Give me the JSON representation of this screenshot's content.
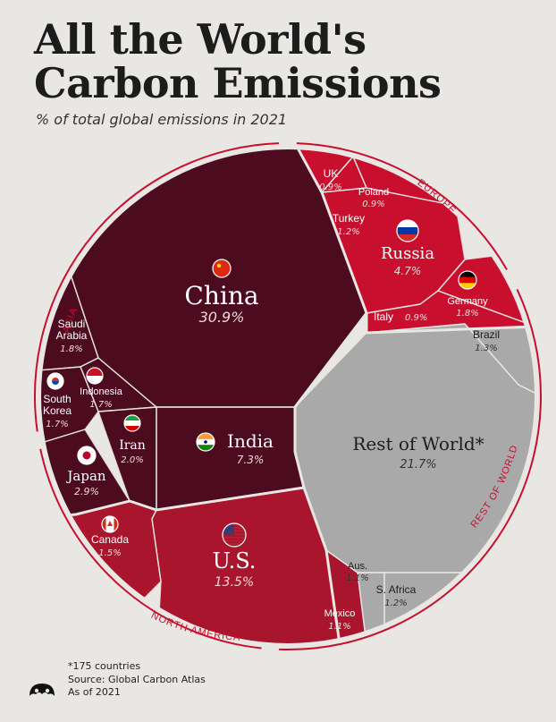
{
  "title_line1": "All the World's",
  "title_line2": "Carbon Emissions",
  "subtitle": "% of total global emissions in 2021",
  "footer": {
    "note": "*175 countries",
    "source": "Source: Global Carbon Atlas",
    "asof": "As of 2021"
  },
  "colors": {
    "asia": "#4d0b20",
    "europe": "#c8102e",
    "north_america": "#a8152c",
    "rest_of_world": "#a9a9a9",
    "ring": "#c8102e",
    "background": "#e9e7e4"
  },
  "chart_data": {
    "type": "voronoi treemap",
    "unit": "% of total global emissions in 2021",
    "groups": [
      {
        "name": "ASIA",
        "countries": [
          {
            "name": "China",
            "value": 30.9,
            "label": "30.9%"
          },
          {
            "name": "India",
            "value": 7.3,
            "label": "7.3%"
          },
          {
            "name": "Japan",
            "value": 2.9,
            "label": "2.9%"
          },
          {
            "name": "Iran",
            "value": 2.0,
            "label": "2.0%"
          },
          {
            "name": "Saudi Arabia",
            "value": 1.8,
            "label": "1.8%"
          },
          {
            "name": "Indonesia",
            "value": 1.7,
            "label": "1.7%"
          },
          {
            "name": "South Korea",
            "value": 1.7,
            "label": "1.7%"
          }
        ]
      },
      {
        "name": "EUROPE",
        "countries": [
          {
            "name": "Russia",
            "value": 4.7,
            "label": "4.7%"
          },
          {
            "name": "Germany",
            "value": 1.8,
            "label": "1.8%"
          },
          {
            "name": "Turkey",
            "value": 1.2,
            "label": "1.2%"
          },
          {
            "name": "UK",
            "value": 0.9,
            "label": "0.9%"
          },
          {
            "name": "Poland",
            "value": 0.9,
            "label": "0.9%"
          },
          {
            "name": "Italy",
            "value": 0.9,
            "label": "0.9%"
          }
        ]
      },
      {
        "name": "NORTH AMERICA",
        "countries": [
          {
            "name": "U.S.",
            "value": 13.5,
            "label": "13.5%"
          },
          {
            "name": "Canada",
            "value": 1.5,
            "label": "1.5%"
          },
          {
            "name": "Mexico",
            "value": 1.1,
            "label": "1.1%"
          }
        ]
      },
      {
        "name": "REST OF WORLD",
        "countries": [
          {
            "name": "Rest of World*",
            "value": 21.7,
            "label": "21.7%"
          },
          {
            "name": "Brazil",
            "value": 1.3,
            "label": "1.3%"
          },
          {
            "name": "Aus.",
            "value": 1.1,
            "label": "1.1%"
          },
          {
            "name": "S. Africa",
            "value": 1.2,
            "label": "1.2%"
          }
        ]
      }
    ]
  }
}
